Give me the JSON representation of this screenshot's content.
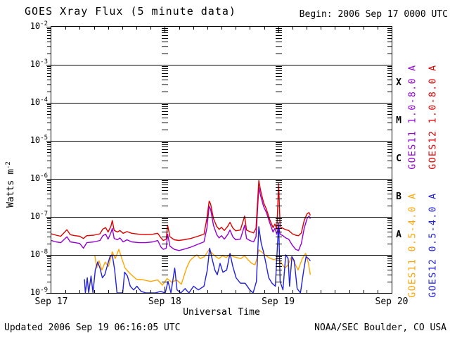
{
  "title": "GOES Xray Flux (5 minute data)",
  "begin_label": "Begin: 2006 Sep 17 0000 UTC",
  "footer": {
    "updated": "Updated 2006 Sep 19 06:16:05 UTC",
    "source": "NOAA/SEC Boulder, CO USA"
  },
  "colors": {
    "goes11_long": "#9400D3",
    "goes12_long": "#DD0000",
    "goes11_short": "#FFA500",
    "goes12_short": "#2222DD",
    "axis": "#000000",
    "background": "#FFFFFF"
  },
  "chart_data": {
    "type": "line",
    "title": "GOES Xray Flux (5 minute data)",
    "xlabel": "Universal Time",
    "ylabel_base": "Watts m",
    "ylabel_exp": "-2",
    "x_ticks": [
      "Sep 17",
      "Sep 18",
      "Sep 19",
      "Sep 20"
    ],
    "x_range_hours": [
      0,
      72
    ],
    "x_minor_tick_hours": 3,
    "day_lines_hours": [
      24,
      48
    ],
    "y_scale": "log",
    "y_exponent_range": [
      -2,
      -9
    ],
    "grid": "horizontal-decades",
    "legend_position": "right-vertical",
    "flare_classes": [
      {
        "label": "X",
        "center_exp": -3.5
      },
      {
        "label": "M",
        "center_exp": -4.5
      },
      {
        "label": "C",
        "center_exp": -5.5
      },
      {
        "label": "B",
        "center_exp": -6.5
      },
      {
        "label": "A",
        "center_exp": -7.5
      }
    ],
    "series": [
      {
        "name": "GOES11 1.0-8.0 A",
        "color": "#9400D3",
        "units": "Watts m^-2",
        "x_units": "hours since 2006 Sep 17 0000 UTC",
        "points": [
          [
            0,
            2.4e-08
          ],
          [
            1,
            2.2e-08
          ],
          [
            2,
            2.1e-08
          ],
          [
            3.3,
            3e-08
          ],
          [
            4,
            2.2e-08
          ],
          [
            5,
            2.1e-08
          ],
          [
            6,
            2e-08
          ],
          [
            6.8,
            1.5e-08
          ],
          [
            7.5,
            2.1e-08
          ],
          [
            9,
            2.2e-08
          ],
          [
            10.3,
            2.4e-08
          ],
          [
            10.9,
            3.2e-08
          ],
          [
            11.5,
            3.5e-08
          ],
          [
            12,
            2.6e-08
          ],
          [
            12.6,
            3.8e-08
          ],
          [
            12.9,
            5e-08
          ],
          [
            13.3,
            2.7e-08
          ],
          [
            14,
            2.5e-08
          ],
          [
            14.5,
            2.8e-08
          ],
          [
            15.2,
            2.2e-08
          ],
          [
            16,
            2.5e-08
          ],
          [
            17,
            2.2e-08
          ],
          [
            18.5,
            2.1e-08
          ],
          [
            20,
            2.1e-08
          ],
          [
            21.5,
            2.2e-08
          ],
          [
            22.5,
            2.4e-08
          ],
          [
            23.2,
            1.6e-08
          ],
          [
            23.7,
            1.4e-08
          ],
          [
            24.3,
            1.5e-08
          ],
          [
            24.6,
            3.5e-08
          ],
          [
            25.1,
            1.7e-08
          ],
          [
            26,
            1.4e-08
          ],
          [
            27,
            1.3e-08
          ],
          [
            28,
            1.4e-08
          ],
          [
            29.5,
            1.6e-08
          ],
          [
            31,
            1.9e-08
          ],
          [
            32.3,
            2.2e-08
          ],
          [
            32.9,
            5e-08
          ],
          [
            33.4,
            1.9e-07
          ],
          [
            33.7,
            1.6e-07
          ],
          [
            34.3,
            6e-08
          ],
          [
            35,
            3.4e-08
          ],
          [
            35.5,
            2.8e-08
          ],
          [
            36,
            3.2e-08
          ],
          [
            36.6,
            2.6e-08
          ],
          [
            37.3,
            3.4e-08
          ],
          [
            37.8,
            4.5e-08
          ],
          [
            38.4,
            3e-08
          ],
          [
            39,
            2.5e-08
          ],
          [
            40,
            2.6e-08
          ],
          [
            40.9,
            6e-08
          ],
          [
            41.3,
            2.7e-08
          ],
          [
            42,
            2.4e-08
          ],
          [
            42.8,
            2.2e-08
          ],
          [
            43.3,
            3e-08
          ],
          [
            43.9,
            6e-07
          ],
          [
            44.3,
            3.5e-07
          ],
          [
            44.9,
            1.9e-07
          ],
          [
            45.5,
            1.3e-07
          ],
          [
            46.2,
            7e-08
          ],
          [
            46.9,
            4e-08
          ],
          [
            47.3,
            5e-08
          ],
          [
            47.7,
            3.5e-08
          ],
          [
            48.1,
            6e-08
          ],
          [
            48.4,
            3.5e-08
          ],
          [
            49,
            3.2e-08
          ],
          [
            49.6,
            2.8e-08
          ],
          [
            50.2,
            2.6e-08
          ],
          [
            51,
            1.8e-08
          ],
          [
            51.7,
            1.4e-08
          ],
          [
            52.3,
            1.3e-08
          ],
          [
            52.9,
            2e-08
          ],
          [
            53.5,
            5e-08
          ],
          [
            54.1,
            9e-08
          ],
          [
            54.5,
            1.05e-07
          ],
          [
            54.8,
            9e-08
          ]
        ]
      },
      {
        "name": "GOES12 1.0-8.0 A",
        "color": "#DD0000",
        "units": "Watts m^-2",
        "x_units": "hours since 2006 Sep 17 0000 UTC",
        "points": [
          [
            0,
            3.6e-08
          ],
          [
            1,
            3.3e-08
          ],
          [
            2,
            3.1e-08
          ],
          [
            3.3,
            4.6e-08
          ],
          [
            4,
            3.4e-08
          ],
          [
            5,
            3.2e-08
          ],
          [
            6,
            3.1e-08
          ],
          [
            6.8,
            2.7e-08
          ],
          [
            7.5,
            3.2e-08
          ],
          [
            9,
            3.3e-08
          ],
          [
            10.3,
            3.6e-08
          ],
          [
            10.9,
            4.8e-08
          ],
          [
            11.5,
            5.2e-08
          ],
          [
            12,
            4e-08
          ],
          [
            12.6,
            5.6e-08
          ],
          [
            12.9,
            8e-08
          ],
          [
            13.3,
            4.4e-08
          ],
          [
            14,
            4e-08
          ],
          [
            14.5,
            4.4e-08
          ],
          [
            15.2,
            3.7e-08
          ],
          [
            16,
            4.1e-08
          ],
          [
            17,
            3.7e-08
          ],
          [
            18.5,
            3.5e-08
          ],
          [
            20,
            3.4e-08
          ],
          [
            21.5,
            3.5e-08
          ],
          [
            22.5,
            3.7e-08
          ],
          [
            23.2,
            2.8e-08
          ],
          [
            23.7,
            2.4e-08
          ],
          [
            24.3,
            2.6e-08
          ],
          [
            24.6,
            6e-08
          ],
          [
            25.1,
            3e-08
          ],
          [
            26,
            2.5e-08
          ],
          [
            27,
            2.4e-08
          ],
          [
            28,
            2.5e-08
          ],
          [
            29.5,
            2.7e-08
          ],
          [
            31,
            3.1e-08
          ],
          [
            32.3,
            3.5e-08
          ],
          [
            32.9,
            9e-08
          ],
          [
            33.4,
            2.6e-07
          ],
          [
            33.7,
            2.2e-07
          ],
          [
            34.3,
            9e-08
          ],
          [
            35,
            5.6e-08
          ],
          [
            35.5,
            4.7e-08
          ],
          [
            36,
            5.3e-08
          ],
          [
            36.6,
            4.4e-08
          ],
          [
            37.3,
            5.6e-08
          ],
          [
            37.8,
            7.2e-08
          ],
          [
            38.4,
            5.1e-08
          ],
          [
            39,
            4.3e-08
          ],
          [
            40,
            4.5e-08
          ],
          [
            40.9,
            1.05e-07
          ],
          [
            41.3,
            4.5e-08
          ],
          [
            42,
            4.1e-08
          ],
          [
            42.8,
            3.8e-08
          ],
          [
            43.3,
            5e-08
          ],
          [
            43.9,
            9e-07
          ],
          [
            44.3,
            4.8e-07
          ],
          [
            44.9,
            2.4e-07
          ],
          [
            45.5,
            1.6e-07
          ],
          [
            46.2,
            8.5e-08
          ],
          [
            46.9,
            5.2e-08
          ],
          [
            47.3,
            6.5e-08
          ],
          [
            47.7,
            4.8e-08
          ],
          [
            48.1,
            7.5e-07
          ],
          [
            48.4,
            5.5e-08
          ],
          [
            49,
            5e-08
          ],
          [
            49.6,
            4.6e-08
          ],
          [
            50.2,
            4.4e-08
          ],
          [
            51,
            3.6e-08
          ],
          [
            51.7,
            3.3e-08
          ],
          [
            52.3,
            3.2e-08
          ],
          [
            52.9,
            3.8e-08
          ],
          [
            53.5,
            8e-08
          ],
          [
            54.1,
            1.2e-07
          ],
          [
            54.5,
            1.3e-07
          ],
          [
            54.8,
            1.1e-07
          ]
        ]
      },
      {
        "name": "GOES11 0.5-4.0 A",
        "color": "#FFA500",
        "units": "Watts m^-2",
        "x_units": "hours since 2006 Sep 17 0000 UTC",
        "points": [
          [
            9.2,
            1e-08
          ],
          [
            9.6,
            4.5e-09
          ],
          [
            10.1,
            7e-09
          ],
          [
            10.7,
            4e-09
          ],
          [
            11.4,
            6.5e-09
          ],
          [
            12.1,
            5e-09
          ],
          [
            12.9,
            1.2e-08
          ],
          [
            13.5,
            8e-09
          ],
          [
            14.3,
            1.4e-08
          ],
          [
            14.9,
            8e-09
          ],
          [
            15.6,
            4.5e-09
          ],
          [
            16.4,
            3.5e-09
          ],
          [
            17.2,
            2.8e-09
          ],
          [
            18,
            2.3e-09
          ],
          [
            19.5,
            2.2e-09
          ],
          [
            21,
            2e-09
          ],
          [
            22.5,
            2.2e-09
          ],
          [
            23.5,
            1.6e-09
          ],
          [
            24.5,
            2.4e-09
          ],
          [
            25.5,
            1.9e-09
          ],
          [
            26.5,
            2.2e-09
          ],
          [
            27.5,
            1.7e-09
          ],
          [
            28.6,
            4.5e-09
          ],
          [
            29.3,
            7e-09
          ],
          [
            30,
            8.5e-09
          ],
          [
            30.8,
            1e-08
          ],
          [
            31.5,
            8e-09
          ],
          [
            32.4,
            9e-09
          ],
          [
            33.4,
            1.4e-08
          ],
          [
            34,
            1.1e-08
          ],
          [
            34.8,
            9e-09
          ],
          [
            35.5,
            8e-09
          ],
          [
            36.2,
            9.5e-09
          ],
          [
            37,
            8.5e-09
          ],
          [
            37.8,
            1.05e-08
          ],
          [
            38.5,
            9e-09
          ],
          [
            39.3,
            8.5e-09
          ],
          [
            40.1,
            8e-09
          ],
          [
            40.9,
            9.5e-09
          ],
          [
            41.6,
            7.5e-09
          ],
          [
            42.4,
            6e-09
          ],
          [
            43.1,
            5.5e-09
          ],
          [
            43.6,
            9e-09
          ],
          [
            43.9,
            1.35e-08
          ],
          [
            44.5,
            1.2e-08
          ],
          [
            45.2,
            1e-08
          ],
          [
            46,
            8.5e-09
          ],
          [
            47,
            7.5e-09
          ],
          [
            48.1,
            8e-09
          ],
          [
            48.7,
            6e-09
          ],
          [
            49.4,
            4.5e-09
          ],
          [
            50.1,
            5.5e-09
          ],
          [
            50.8,
            9e-09
          ],
          [
            51.5,
            6e-09
          ],
          [
            52.2,
            4e-09
          ],
          [
            53.1,
            8e-09
          ],
          [
            53.8,
            1.1e-08
          ],
          [
            54.4,
            6e-09
          ],
          [
            54.8,
            3e-09
          ]
        ]
      },
      {
        "name": "GOES12 0.5-4.0 A",
        "color": "#2222DD",
        "units": "Watts m^-2",
        "x_units": "hours since 2006 Sep 17 0000 UTC",
        "points": [
          [
            7,
            2.3e-09
          ],
          [
            7.2,
            1e-09
          ],
          [
            7.6,
            2.5e-09
          ],
          [
            7.9,
            1e-09
          ],
          [
            8.4,
            2.8e-09
          ],
          [
            8.8,
            1e-09
          ],
          [
            9.3,
            4e-09
          ],
          [
            9.8,
            6.5e-09
          ],
          [
            10.3,
            4.5e-09
          ],
          [
            10.8,
            2.5e-09
          ],
          [
            11.3,
            3e-09
          ],
          [
            11.9,
            5.5e-09
          ],
          [
            12.4,
            9e-09
          ],
          [
            12.9,
            1e-08
          ],
          [
            13.4,
            4e-09
          ],
          [
            13.9,
            1e-09
          ],
          [
            14.4,
            8e-10
          ],
          [
            15.1,
            8e-10
          ],
          [
            15.5,
            3.5e-09
          ],
          [
            16.1,
            2.8e-09
          ],
          [
            16.7,
            1.5e-09
          ],
          [
            17.4,
            1.2e-09
          ],
          [
            18.1,
            1.5e-09
          ],
          [
            19,
            1.1e-09
          ],
          [
            20,
            9e-10
          ],
          [
            21,
            1e-09
          ],
          [
            22,
            8e-10
          ],
          [
            23.1,
            1.1e-09
          ],
          [
            24.1,
            1e-09
          ],
          [
            24.7,
            2e-09
          ],
          [
            25.3,
            9e-10
          ],
          [
            26.1,
            4.5e-09
          ],
          [
            26.6,
            1.2e-09
          ],
          [
            27.4,
            9e-10
          ],
          [
            28.3,
            1.3e-09
          ],
          [
            29.1,
            1e-09
          ],
          [
            30.1,
            1.5e-09
          ],
          [
            31.1,
            1.2e-09
          ],
          [
            32.3,
            1.5e-09
          ],
          [
            33,
            4e-09
          ],
          [
            33.5,
            1.5e-08
          ],
          [
            34,
            8e-09
          ],
          [
            34.6,
            4e-09
          ],
          [
            35.1,
            3e-09
          ],
          [
            35.7,
            6e-09
          ],
          [
            36.3,
            3.5e-09
          ],
          [
            37.1,
            4e-09
          ],
          [
            37.8,
            1.1e-08
          ],
          [
            38.4,
            5e-09
          ],
          [
            39.1,
            2.5e-09
          ],
          [
            40,
            1.8e-09
          ],
          [
            41,
            1.8e-09
          ],
          [
            42,
            1.2e-09
          ],
          [
            42.7,
            8e-10
          ],
          [
            43.4,
            2e-09
          ],
          [
            43.9,
            5.5e-08
          ],
          [
            44.4,
            2e-08
          ],
          [
            44.9,
            1.2e-08
          ],
          [
            45.4,
            6e-09
          ],
          [
            46,
            2.5e-09
          ],
          [
            46.7,
            1.8e-09
          ],
          [
            47.4,
            1.5e-09
          ],
          [
            48.1,
            7e-08
          ],
          [
            48.4,
            2e-09
          ],
          [
            49,
            1.2e-09
          ],
          [
            49.6,
            1e-08
          ],
          [
            50.1,
            8e-09
          ],
          [
            50.4,
            1.5e-09
          ],
          [
            50.9,
            9e-09
          ],
          [
            51.4,
            7e-09
          ],
          [
            52,
            1.3e-09
          ],
          [
            52.7,
            1e-09
          ],
          [
            53.4,
            4e-09
          ],
          [
            53.9,
            9e-09
          ],
          [
            54.4,
            8e-09
          ],
          [
            54.8,
            7e-09
          ]
        ]
      }
    ]
  }
}
